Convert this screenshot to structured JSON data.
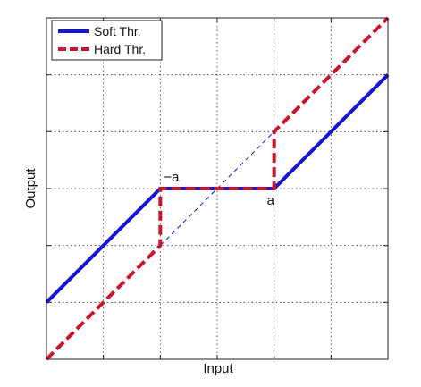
{
  "chart_data": {
    "type": "line",
    "title": "",
    "xlabel": "Input",
    "ylabel": "Output",
    "xlim": [
      -3,
      3
    ],
    "ylim": [
      -3,
      3
    ],
    "grid": true,
    "legend_position": "top-left",
    "annotations": [
      {
        "label": "−a",
        "x": -1,
        "y": 0
      },
      {
        "label": "a",
        "x": 1,
        "y": 0
      }
    ],
    "series": [
      {
        "name": "Soft Thr.",
        "color": "#1414d8",
        "style": "solid",
        "x": [
          -3,
          -1,
          1,
          3
        ],
        "y": [
          -2,
          0,
          0,
          2
        ]
      },
      {
        "name": "Hard Thr.",
        "color": "#c8142d",
        "style": "dashed",
        "x": [
          -3,
          -1,
          -1,
          1,
          1,
          3
        ],
        "y": [
          -3,
          -1,
          0,
          0,
          1,
          3
        ]
      }
    ],
    "reference_line": {
      "color": "#1414d8",
      "style": "thin-dashed",
      "x": [
        -1,
        1
      ],
      "y": [
        -1,
        1
      ]
    },
    "grid_ticks": {
      "x": [
        -2,
        -1,
        0,
        1,
        2
      ],
      "y": [
        -2,
        -1,
        0,
        1,
        2
      ]
    }
  }
}
